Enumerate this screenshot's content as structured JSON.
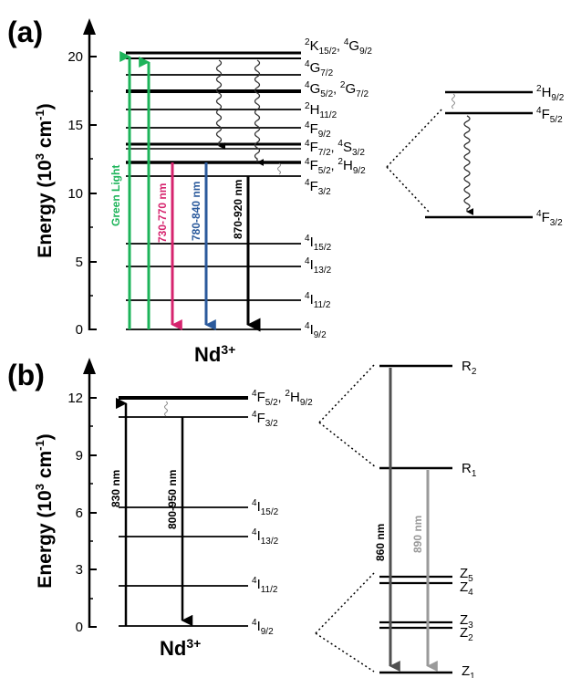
{
  "panel_a": {
    "label": "(a)",
    "axis_title_main": "Energy (10",
    "axis_title_sup3": "3",
    "axis_title_cm": " cm",
    "axis_title_supm1": "-1",
    "axis_title_close": ")",
    "ticks": [
      "0",
      "5",
      "10",
      "15",
      "20"
    ],
    "ion_main": "Nd",
    "ion_sup": "3+",
    "arrow_green": "Green Light",
    "arrow_magenta": "730-770 nm",
    "arrow_blue": "780-840 nm",
    "arrow_black": "870-920 nm",
    "levels": {
      "K15": {
        "sup1": "2",
        "sym1": "K",
        "sub1": "15/2",
        "sep": ", ",
        "sup2": "4",
        "sym2": "G",
        "sub2": "9/2"
      },
      "G7": {
        "sup1": "4",
        "sym1": "G",
        "sub1": "7/2"
      },
      "G5": {
        "sup1": "4",
        "sym1": "G",
        "sub1": "5/2",
        "sep": ", ",
        "sup2": "2",
        "sym2": "G",
        "sub2": "7/2"
      },
      "H11": {
        "sup1": "2",
        "sym1": "H",
        "sub1": "11/2"
      },
      "F9": {
        "sup1": "4",
        "sym1": "F",
        "sub1": "9/2"
      },
      "F7": {
        "sup1": "4",
        "sym1": "F",
        "sub1": "7/2",
        "sep": ", ",
        "sup2": "4",
        "sym2": "S",
        "sub2": "3/2"
      },
      "F5": {
        "sup1": "4",
        "sym1": "F",
        "sub1": "5/2",
        "sep": ", ",
        "sup2": "2",
        "sym2": "H",
        "sub2": "9/2"
      },
      "F3": {
        "sup1": "4",
        "sym1": "F",
        "sub1": "3/2"
      },
      "I15": {
        "sup1": "4",
        "sym1": "I",
        "sub1": "15/2"
      },
      "I13": {
        "sup1": "4",
        "sym1": "I",
        "sub1": "13/2"
      },
      "I11": {
        "sup1": "4",
        "sym1": "I",
        "sub1": "11/2"
      },
      "I9": {
        "sup1": "4",
        "sym1": "I",
        "sub1": "9/2"
      }
    },
    "inset": {
      "H9": {
        "sup1": "2",
        "sym1": "H",
        "sub1": "9/2"
      },
      "F5": {
        "sup1": "4",
        "sym1": "F",
        "sub1": "5/2"
      },
      "F3": {
        "sup1": "4",
        "sym1": "F",
        "sub1": "3/2"
      }
    }
  },
  "panel_b": {
    "label": "(b)",
    "ticks": [
      "0",
      "3",
      "6",
      "9",
      "12"
    ],
    "ion_main": "Nd",
    "ion_sup": "3+",
    "arrow_830": "830 nm",
    "arrow_800": "800-950 nm",
    "arrow_860": "860 nm",
    "arrow_890": "890 nm",
    "levels": {
      "F5": {
        "sup1": "4",
        "sym1": "F",
        "sub1": "5/2",
        "sep": ", ",
        "sup2": "2",
        "sym2": "H",
        "sub2": "9/2"
      },
      "F3": {
        "sup1": "4",
        "sym1": "F",
        "sub1": "3/2"
      },
      "I15": {
        "sup1": "4",
        "sym1": "I",
        "sub1": "15/2"
      },
      "I13": {
        "sup1": "4",
        "sym1": "I",
        "sub1": "13/2"
      },
      "I11": {
        "sup1": "4",
        "sym1": "I",
        "sub1": "11/2"
      },
      "I9": {
        "sup1": "4",
        "sym1": "I",
        "sub1": "9/2"
      }
    },
    "stark": {
      "R2": {
        "sym": "R",
        "sub": "2"
      },
      "R1": {
        "sym": "R",
        "sub": "1"
      },
      "Z5": {
        "sym": "Z",
        "sub": "5"
      },
      "Z4": {
        "sym": "Z",
        "sub": "4"
      },
      "Z3": {
        "sym": "Z",
        "sub": "3"
      },
      "Z2": {
        "sym": "Z",
        "sub": "2"
      },
      "Z1": {
        "sym": "Z",
        "sub": "1"
      }
    }
  },
  "colors": {
    "green": "#1db45a",
    "magenta": "#d6246e",
    "blue": "#2b5a9c",
    "black": "#000000",
    "dark_gray": "#505050",
    "light_gray": "#9a9a9a"
  }
}
